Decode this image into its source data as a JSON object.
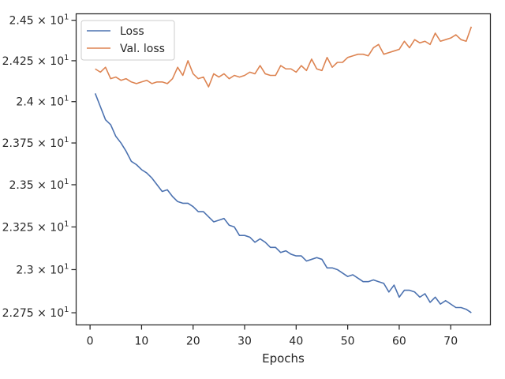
{
  "chart_data": {
    "type": "line",
    "title": "",
    "xlabel": "Epochs",
    "ylabel": "",
    "yscale": "log",
    "xlim": [
      -2.7,
      77.7
    ],
    "ylim": [
      22.68,
      24.54
    ],
    "grid": false,
    "legend_position": "top-left",
    "xticks": [
      0,
      10,
      20,
      30,
      40,
      50,
      60,
      70
    ],
    "yticks": [
      {
        "value": 22.75,
        "mantissa": "2.275"
      },
      {
        "value": 23.0,
        "mantissa": "2.3"
      },
      {
        "value": 23.25,
        "mantissa": "2.325"
      },
      {
        "value": 23.5,
        "mantissa": "2.35"
      },
      {
        "value": 23.75,
        "mantissa": "2.375"
      },
      {
        "value": 24.0,
        "mantissa": "2.4"
      },
      {
        "value": 24.25,
        "mantissa": "2.425"
      },
      {
        "value": 24.5,
        "mantissa": "2.45"
      }
    ],
    "ytick_base": "10",
    "ytick_exponent": "1",
    "x_start": 1,
    "series": [
      {
        "name": "Loss",
        "color": "#4c72b0",
        "values": [
          24.05,
          23.97,
          23.89,
          23.86,
          23.79,
          23.75,
          23.7,
          23.64,
          23.62,
          23.59,
          23.57,
          23.54,
          23.5,
          23.46,
          23.47,
          23.43,
          23.4,
          23.39,
          23.39,
          23.37,
          23.34,
          23.34,
          23.31,
          23.28,
          23.29,
          23.3,
          23.26,
          23.25,
          23.2,
          23.2,
          23.19,
          23.16,
          23.18,
          23.16,
          23.13,
          23.13,
          23.1,
          23.11,
          23.09,
          23.08,
          23.08,
          23.05,
          23.06,
          23.07,
          23.06,
          23.01,
          23.01,
          23.0,
          22.98,
          22.96,
          22.97,
          22.95,
          22.93,
          22.93,
          22.94,
          22.93,
          22.92,
          22.87,
          22.91,
          22.84,
          22.88,
          22.88,
          22.87,
          22.84,
          22.86,
          22.81,
          22.84,
          22.8,
          22.82,
          22.8,
          22.78,
          22.78,
          22.77,
          22.75
        ]
      },
      {
        "name": "Val. loss",
        "color": "#dd8452",
        "values": [
          24.2,
          24.18,
          24.21,
          24.14,
          24.15,
          24.13,
          24.14,
          24.12,
          24.11,
          24.12,
          24.13,
          24.11,
          24.12,
          24.12,
          24.11,
          24.14,
          24.21,
          24.16,
          24.25,
          24.17,
          24.14,
          24.15,
          24.09,
          24.17,
          24.15,
          24.17,
          24.14,
          24.16,
          24.15,
          24.16,
          24.18,
          24.17,
          24.22,
          24.17,
          24.16,
          24.16,
          24.22,
          24.2,
          24.2,
          24.18,
          24.22,
          24.19,
          24.26,
          24.2,
          24.19,
          24.27,
          24.21,
          24.24,
          24.24,
          24.27,
          24.28,
          24.29,
          24.29,
          24.28,
          24.33,
          24.35,
          24.29,
          24.3,
          24.31,
          24.32,
          24.37,
          24.33,
          24.38,
          24.36,
          24.37,
          24.35,
          24.42,
          24.37,
          24.38,
          24.39,
          24.41,
          24.38,
          24.37,
          24.46
        ]
      }
    ]
  }
}
